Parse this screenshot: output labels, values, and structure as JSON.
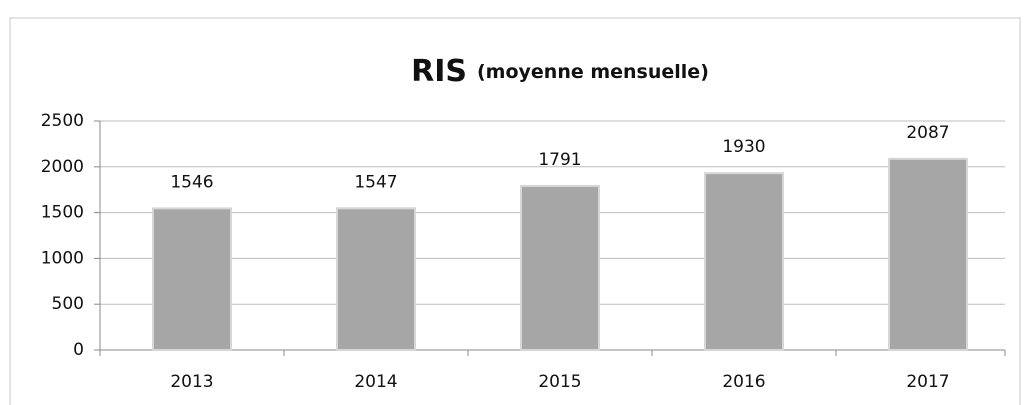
{
  "chart_data": {
    "type": "bar",
    "title": "RIS",
    "subtitle": "(moyenne mensuelle)",
    "categories": [
      "2013",
      "2014",
      "2015",
      "2016",
      "2017"
    ],
    "values": [
      1546,
      1547,
      1791,
      1930,
      2087
    ],
    "color": "#a6a6a6",
    "ylim": [
      0,
      2500
    ],
    "yticks": [
      0,
      500,
      1000,
      1500,
      2000,
      2500
    ],
    "grid": true
  }
}
